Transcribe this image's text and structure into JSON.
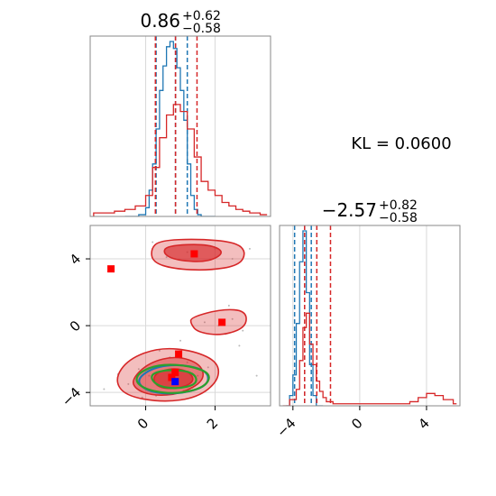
{
  "chart_data": [
    {
      "type": "histogram",
      "panel": "marginal-x",
      "title_value": "0.86",
      "title_plus": "+0.62",
      "title_minus": "−0.58",
      "xlim": [
        -1.6,
        3.6
      ],
      "x_ticks": [
        0,
        2
      ],
      "grid": true,
      "series": [
        {
          "color": "#1f77b4",
          "x": [
            -0.6,
            -0.4,
            -0.2,
            0.0,
            0.1,
            0.2,
            0.3,
            0.4,
            0.5,
            0.6,
            0.7,
            0.8,
            0.9,
            1.0,
            1.1,
            1.2,
            1.3,
            1.4,
            1.5,
            1.6,
            1.8
          ],
          "y": [
            0,
            0,
            0.01,
            0.05,
            0.15,
            0.3,
            0.5,
            0.72,
            0.86,
            0.97,
            1.0,
            0.96,
            0.85,
            0.72,
            0.55,
            0.3,
            0.12,
            0.04,
            0.01,
            0,
            0
          ],
          "quantiles": [
            0.3,
            0.86,
            1.2
          ]
        },
        {
          "color": "#d62728",
          "x": [
            -1.5,
            -1.2,
            -0.9,
            -0.6,
            -0.3,
            0.0,
            0.2,
            0.4,
            0.6,
            0.8,
            1.0,
            1.2,
            1.4,
            1.6,
            1.8,
            2.0,
            2.2,
            2.4,
            2.6,
            2.8,
            3.0,
            3.3
          ],
          "y": [
            0.02,
            0.02,
            0.03,
            0.04,
            0.06,
            0.12,
            0.28,
            0.45,
            0.58,
            0.64,
            0.6,
            0.5,
            0.34,
            0.2,
            0.15,
            0.12,
            0.08,
            0.06,
            0.04,
            0.03,
            0.02,
            0.01
          ],
          "quantiles": [
            0.28,
            0.86,
            1.48
          ]
        }
      ]
    },
    {
      "type": "histogram",
      "panel": "marginal-y",
      "title_value": "−2.57",
      "title_plus": "+0.82",
      "title_minus": "−0.58",
      "xlim": [
        -4.8,
        6.0
      ],
      "x_ticks": [
        -4,
        0,
        4
      ],
      "grid": true,
      "annotation": "KL = 0.0600",
      "series": [
        {
          "color": "#1f77b4",
          "x": [
            -4.4,
            -4.2,
            -4.0,
            -3.8,
            -3.6,
            -3.4,
            -3.2,
            -3.0,
            -2.8,
            -2.6,
            -2.4
          ],
          "y": [
            0,
            0.05,
            0.15,
            0.4,
            0.7,
            0.85,
            0.55,
            0.2,
            0.05,
            0,
            0
          ],
          "quantiles": [
            -3.9,
            -3.3,
            -2.9
          ]
        },
        {
          "color": "#d62728",
          "x": [
            -4.6,
            -4.2,
            -3.8,
            -3.6,
            -3.4,
            -3.2,
            -3.0,
            -2.8,
            -2.6,
            -2.4,
            -2.2,
            -2.0,
            -1.6,
            -1.2,
            -0.8,
            0.0,
            1.0,
            2.0,
            3.0,
            3.5,
            4.0,
            4.5,
            5.0,
            5.6
          ],
          "y": [
            0.0,
            0.03,
            0.08,
            0.22,
            0.38,
            0.45,
            0.3,
            0.2,
            0.12,
            0.07,
            0.04,
            0.02,
            0.01,
            0.01,
            0.01,
            0.01,
            0.01,
            0.01,
            0.02,
            0.04,
            0.06,
            0.05,
            0.03,
            0.01
          ],
          "quantiles": [
            -3.3,
            -2.57,
            -1.75
          ]
        }
      ]
    },
    {
      "type": "scatter",
      "panel": "joint",
      "xlim": [
        -1.6,
        3.6
      ],
      "ylim": [
        -4.8,
        6.0
      ],
      "x_ticks": [
        0,
        2
      ],
      "y_ticks": [
        -4,
        0,
        4
      ],
      "grid": true,
      "markers": [
        {
          "x": -1.0,
          "y": 3.4,
          "color": "#ff0000"
        },
        {
          "x": 1.4,
          "y": 4.3,
          "color": "#ff0000"
        },
        {
          "x": 2.2,
          "y": 0.2,
          "color": "#ff0000"
        },
        {
          "x": 0.95,
          "y": -1.7,
          "color": "#ff0000"
        },
        {
          "x": 0.85,
          "y": -2.8,
          "color": "#ff0000"
        },
        {
          "x": 0.75,
          "y": -3.1,
          "color": "#ff0000"
        },
        {
          "x": 0.85,
          "y": -3.35,
          "color": "#0000ff"
        }
      ],
      "contours": [
        {
          "color": "#d62728",
          "fill": true,
          "level": "outer",
          "points": [
            [
              0.4,
              5.1
            ],
            [
              1.5,
              5.2
            ],
            [
              2.6,
              5.0
            ],
            [
              2.9,
              4.4
            ],
            [
              2.7,
              3.6
            ],
            [
              1.8,
              3.3
            ],
            [
              0.8,
              3.4
            ],
            [
              0.2,
              3.8
            ],
            [
              0.15,
              4.6
            ]
          ]
        },
        {
          "color": "#d62728",
          "fill": true,
          "level": "inner",
          "points": [
            [
              0.6,
              4.8
            ],
            [
              1.8,
              4.9
            ],
            [
              2.3,
              4.4
            ],
            [
              1.8,
              3.8
            ],
            [
              0.9,
              3.9
            ],
            [
              0.5,
              4.3
            ]
          ]
        },
        {
          "color": "#d62728",
          "fill": true,
          "level": "outer",
          "points": [
            [
              1.3,
              0.5
            ],
            [
              2.2,
              1.0
            ],
            [
              2.9,
              0.9
            ],
            [
              2.9,
              -0.1
            ],
            [
              2.2,
              -0.6
            ],
            [
              1.5,
              -0.4
            ],
            [
              1.3,
              0.1
            ]
          ]
        },
        {
          "color": "#d62728",
          "fill": true,
          "level": "outer",
          "points": [
            [
              -0.9,
              -3.2
            ],
            [
              -0.5,
              -2.0
            ],
            [
              0.4,
              -1.3
            ],
            [
              1.4,
              -1.5
            ],
            [
              2.1,
              -2.2
            ],
            [
              2.1,
              -3.3
            ],
            [
              1.5,
              -4.3
            ],
            [
              0.5,
              -4.6
            ],
            [
              -0.6,
              -4.2
            ]
          ]
        },
        {
          "color": "#d62728",
          "fill": true,
          "level": "mid",
          "points": [
            [
              -0.4,
              -3.2
            ],
            [
              0.1,
              -2.2
            ],
            [
              0.9,
              -1.8
            ],
            [
              1.6,
              -2.3
            ],
            [
              1.7,
              -3.3
            ],
            [
              1.0,
              -4.1
            ],
            [
              0.2,
              -4.2
            ],
            [
              -0.3,
              -3.8
            ]
          ]
        },
        {
          "color": "#d62728",
          "fill": true,
          "level": "inner",
          "points": [
            [
              0.2,
              -2.9
            ],
            [
              0.8,
              -2.5
            ],
            [
              1.3,
              -2.8
            ],
            [
              1.4,
              -3.4
            ],
            [
              0.9,
              -3.8
            ],
            [
              0.3,
              -3.7
            ]
          ]
        },
        {
          "color": "#1f77b4",
          "fill": false,
          "level": "outer",
          "points": [
            [
              -0.3,
              -3.3
            ],
            [
              0.2,
              -2.5
            ],
            [
              1.0,
              -2.3
            ],
            [
              1.8,
              -2.7
            ],
            [
              1.8,
              -3.6
            ],
            [
              1.0,
              -4.1
            ],
            [
              0.1,
              -4.0
            ]
          ]
        },
        {
          "color": "#2ca02c",
          "fill": false,
          "level": "outer",
          "points": [
            [
              -0.2,
              -2.8
            ],
            [
              0.4,
              -2.3
            ],
            [
              1.3,
              -2.4
            ],
            [
              1.9,
              -2.9
            ],
            [
              1.7,
              -3.7
            ],
            [
              0.9,
              -4.1
            ],
            [
              0.1,
              -3.9
            ],
            [
              -0.3,
              -3.4
            ]
          ]
        },
        {
          "color": "#2ca02c",
          "fill": false,
          "level": "mid",
          "points": [
            [
              0.1,
              -2.9
            ],
            [
              0.7,
              -2.6
            ],
            [
              1.4,
              -2.8
            ],
            [
              1.5,
              -3.5
            ],
            [
              0.9,
              -3.8
            ],
            [
              0.3,
              -3.6
            ]
          ]
        }
      ],
      "cloud": [
        [
          -0.2,
          -2.6
        ],
        [
          0.1,
          -3.0
        ],
        [
          0.5,
          -2.4
        ],
        [
          1.2,
          -2.2
        ],
        [
          1.5,
          -3.0
        ],
        [
          1.1,
          -3.9
        ],
        [
          0.3,
          -4.2
        ],
        [
          -0.5,
          -3.5
        ],
        [
          0.7,
          -1.9
        ],
        [
          1.8,
          -2.5
        ],
        [
          2.1,
          0.0
        ],
        [
          2.5,
          0.4
        ],
        [
          1.7,
          0.2
        ],
        [
          2.8,
          -0.3
        ],
        [
          1.2,
          4.4
        ],
        [
          2.0,
          4.6
        ],
        [
          0.6,
          4.1
        ],
        [
          2.5,
          4.0
        ],
        [
          -0.8,
          -2.9
        ],
        [
          -0.1,
          -4.3
        ],
        [
          1.9,
          -3.6
        ],
        [
          0.4,
          -1.5
        ],
        [
          2.3,
          -0.5
        ],
        [
          3.0,
          4.6
        ],
        [
          2.7,
          -1.2
        ],
        [
          1.0,
          -0.9
        ],
        [
          2.4,
          1.2
        ],
        [
          0.2,
          5.0
        ],
        [
          3.2,
          -3.0
        ],
        [
          -1.2,
          -3.8
        ]
      ]
    }
  ]
}
